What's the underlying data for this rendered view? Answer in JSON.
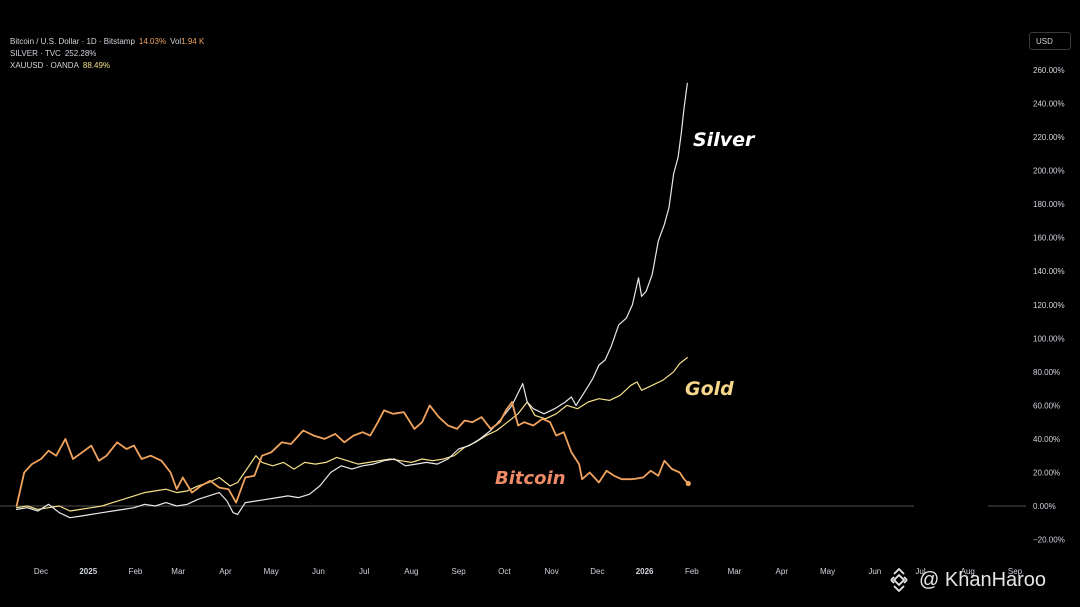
{
  "legend": [
    {
      "name": "Bitcoin / U.S. Dollar · 1D · Bitstamp",
      "value": "14.03%",
      "vol_label": "Vol",
      "vol_value": "1.94 K",
      "color": "#f0a35e"
    },
    {
      "name": "SILVER · TVC",
      "value": "252.28%",
      "color": "#ffffff"
    },
    {
      "name": "XAUUSD · OANDA",
      "value": "88.49%",
      "color": "#f5e08a"
    }
  ],
  "currency": "USD",
  "labels": {
    "silver": "Silver",
    "gold": "Gold",
    "bitcoin": "Bitcoin"
  },
  "watermark": {
    "handle": "@ KhanHaroo",
    "icon": "binance-logo-icon"
  },
  "colors": {
    "bitcoin": "#f0a35e",
    "silver": "#e8e8e8",
    "gold": "#f5e08a",
    "bitcoin_label": "#ee8a66",
    "gold_label": "#f5d68a"
  },
  "chart_data": {
    "type": "line",
    "y_unit": "%",
    "ylim": [
      -25,
      268
    ],
    "xlim": [
      "2024-11-15",
      "2026-09-20"
    ],
    "yticks": [
      "260.00%",
      "240.00%",
      "220.00%",
      "200.00%",
      "180.00%",
      "160.00%",
      "140.00%",
      "120.00%",
      "100.00%",
      "80.00%",
      "60.00%",
      "40.00%",
      "20.00%",
      "0.00%",
      "−20.00%"
    ],
    "ytick_values": [
      260,
      240,
      220,
      200,
      180,
      160,
      140,
      120,
      100,
      80,
      60,
      40,
      20,
      0,
      -20
    ],
    "xticks": [
      {
        "date": "2024-12-01",
        "label": "Dec"
      },
      {
        "date": "2025-01-01",
        "label": "2025",
        "bold": true
      },
      {
        "date": "2025-02-01",
        "label": "Feb"
      },
      {
        "date": "2025-03-01",
        "label": "Mar"
      },
      {
        "date": "2025-04-01",
        "label": "Apr"
      },
      {
        "date": "2025-05-01",
        "label": "May"
      },
      {
        "date": "2025-06-01",
        "label": "Jun"
      },
      {
        "date": "2025-07-01",
        "label": "Jul"
      },
      {
        "date": "2025-08-01",
        "label": "Aug"
      },
      {
        "date": "2025-09-01",
        "label": "Sep"
      },
      {
        "date": "2025-10-01",
        "label": "Oct"
      },
      {
        "date": "2025-11-01",
        "label": "Nov"
      },
      {
        "date": "2025-12-01",
        "label": "Dec"
      },
      {
        "date": "2026-01-01",
        "label": "2026",
        "bold": true
      },
      {
        "date": "2026-02-01",
        "label": "Feb"
      },
      {
        "date": "2026-03-01",
        "label": "Mar"
      },
      {
        "date": "2026-04-01",
        "label": "Apr"
      },
      {
        "date": "2026-05-01",
        "label": "May"
      },
      {
        "date": "2026-06-01",
        "label": "Jun"
      },
      {
        "date": "2026-07-01",
        "label": "Jul"
      },
      {
        "date": "2026-08-01",
        "label": "Aug"
      },
      {
        "date": "2026-09-01",
        "label": "Sep"
      }
    ],
    "series": [
      {
        "name": "Bitcoin",
        "key": "bitcoin",
        "points": [
          [
            "2024-11-15",
            0
          ],
          [
            "2024-11-20",
            20
          ],
          [
            "2024-11-25",
            25
          ],
          [
            "2024-12-01",
            28
          ],
          [
            "2024-12-06",
            33
          ],
          [
            "2024-12-11",
            30
          ],
          [
            "2024-12-17",
            40
          ],
          [
            "2024-12-22",
            28
          ],
          [
            "2024-12-28",
            32
          ],
          [
            "2025-01-03",
            36
          ],
          [
            "2025-01-08",
            27
          ],
          [
            "2025-01-13",
            30
          ],
          [
            "2025-01-20",
            38
          ],
          [
            "2025-01-26",
            34
          ],
          [
            "2025-01-31",
            36
          ],
          [
            "2025-02-05",
            28
          ],
          [
            "2025-02-11",
            30
          ],
          [
            "2025-02-18",
            27
          ],
          [
            "2025-02-24",
            20
          ],
          [
            "2025-02-28",
            10
          ],
          [
            "2025-03-04",
            17
          ],
          [
            "2025-03-10",
            8
          ],
          [
            "2025-03-16",
            12
          ],
          [
            "2025-03-22",
            15
          ],
          [
            "2025-03-28",
            11
          ],
          [
            "2025-04-03",
            10
          ],
          [
            "2025-04-08",
            2
          ],
          [
            "2025-04-14",
            17
          ],
          [
            "2025-04-20",
            18
          ],
          [
            "2025-04-25",
            30
          ],
          [
            "2025-05-01",
            32
          ],
          [
            "2025-05-08",
            38
          ],
          [
            "2025-05-14",
            37
          ],
          [
            "2025-05-22",
            45
          ],
          [
            "2025-05-29",
            42
          ],
          [
            "2025-06-05",
            40
          ],
          [
            "2025-06-12",
            43
          ],
          [
            "2025-06-18",
            38
          ],
          [
            "2025-06-24",
            42
          ],
          [
            "2025-06-30",
            44
          ],
          [
            "2025-07-05",
            42
          ],
          [
            "2025-07-10",
            50
          ],
          [
            "2025-07-14",
            57
          ],
          [
            "2025-07-20",
            55
          ],
          [
            "2025-07-27",
            56
          ],
          [
            "2025-08-03",
            46
          ],
          [
            "2025-08-08",
            50
          ],
          [
            "2025-08-13",
            60
          ],
          [
            "2025-08-19",
            53
          ],
          [
            "2025-08-25",
            48
          ],
          [
            "2025-08-31",
            46
          ],
          [
            "2025-09-05",
            51
          ],
          [
            "2025-09-10",
            50
          ],
          [
            "2025-09-16",
            53
          ],
          [
            "2025-09-22",
            46
          ],
          [
            "2025-09-28",
            50
          ],
          [
            "2025-10-02",
            57
          ],
          [
            "2025-10-06",
            62
          ],
          [
            "2025-10-10",
            48
          ],
          [
            "2025-10-14",
            50
          ],
          [
            "2025-10-20",
            48
          ],
          [
            "2025-10-26",
            52
          ],
          [
            "2025-10-31",
            50
          ],
          [
            "2025-11-04",
            42
          ],
          [
            "2025-11-09",
            44
          ],
          [
            "2025-11-14",
            32
          ],
          [
            "2025-11-19",
            25
          ],
          [
            "2025-11-21",
            16
          ],
          [
            "2025-11-26",
            20
          ],
          [
            "2025-12-02",
            14
          ],
          [
            "2025-12-07",
            21
          ],
          [
            "2025-12-12",
            18
          ],
          [
            "2025-12-17",
            16
          ],
          [
            "2025-12-24",
            16
          ],
          [
            "2025-12-31",
            17
          ],
          [
            "2026-01-05",
            21
          ],
          [
            "2026-01-10",
            18
          ],
          [
            "2026-01-14",
            27
          ],
          [
            "2026-01-19",
            22
          ],
          [
            "2026-01-24",
            20
          ],
          [
            "2026-01-27",
            16
          ],
          [
            "2026-01-29",
            14
          ]
        ]
      },
      {
        "name": "Silver",
        "key": "silver",
        "points": [
          [
            "2024-11-15",
            -2
          ],
          [
            "2024-11-22",
            -1
          ],
          [
            "2024-11-29",
            -3
          ],
          [
            "2024-12-06",
            1
          ],
          [
            "2024-12-13",
            -4
          ],
          [
            "2024-12-20",
            -7
          ],
          [
            "2024-12-27",
            -6
          ],
          [
            "2025-01-03",
            -5
          ],
          [
            "2025-01-10",
            -4
          ],
          [
            "2025-01-17",
            -3
          ],
          [
            "2025-01-24",
            -2
          ],
          [
            "2025-01-31",
            -1
          ],
          [
            "2025-02-07",
            1
          ],
          [
            "2025-02-14",
            0
          ],
          [
            "2025-02-21",
            2
          ],
          [
            "2025-02-28",
            0
          ],
          [
            "2025-03-07",
            1
          ],
          [
            "2025-03-14",
            4
          ],
          [
            "2025-03-21",
            6
          ],
          [
            "2025-03-28",
            8
          ],
          [
            "2025-04-02",
            3
          ],
          [
            "2025-04-06",
            -4
          ],
          [
            "2025-04-09",
            -5
          ],
          [
            "2025-04-14",
            2
          ],
          [
            "2025-04-21",
            3
          ],
          [
            "2025-04-28",
            4
          ],
          [
            "2025-05-05",
            5
          ],
          [
            "2025-05-12",
            6
          ],
          [
            "2025-05-19",
            5
          ],
          [
            "2025-05-26",
            7
          ],
          [
            "2025-06-02",
            12
          ],
          [
            "2025-06-09",
            20
          ],
          [
            "2025-06-16",
            24
          ],
          [
            "2025-06-23",
            22
          ],
          [
            "2025-06-30",
            24
          ],
          [
            "2025-07-07",
            25
          ],
          [
            "2025-07-14",
            27
          ],
          [
            "2025-07-21",
            28
          ],
          [
            "2025-07-28",
            24
          ],
          [
            "2025-08-04",
            25
          ],
          [
            "2025-08-11",
            26
          ],
          [
            "2025-08-18",
            25
          ],
          [
            "2025-08-25",
            28
          ],
          [
            "2025-09-01",
            34
          ],
          [
            "2025-09-08",
            36
          ],
          [
            "2025-09-15",
            40
          ],
          [
            "2025-09-22",
            45
          ],
          [
            "2025-09-29",
            52
          ],
          [
            "2025-10-06",
            60
          ],
          [
            "2025-10-13",
            73
          ],
          [
            "2025-10-16",
            62
          ],
          [
            "2025-10-20",
            58
          ],
          [
            "2025-10-27",
            55
          ],
          [
            "2025-11-03",
            58
          ],
          [
            "2025-11-10",
            62
          ],
          [
            "2025-11-14",
            65
          ],
          [
            "2025-11-17",
            60
          ],
          [
            "2025-11-24",
            70
          ],
          [
            "2025-11-28",
            76
          ],
          [
            "2025-12-02",
            84
          ],
          [
            "2025-12-06",
            87
          ],
          [
            "2025-12-10",
            95
          ],
          [
            "2025-12-15",
            108
          ],
          [
            "2025-12-20",
            112
          ],
          [
            "2025-12-24",
            120
          ],
          [
            "2025-12-28",
            136
          ],
          [
            "2025-12-30",
            125
          ],
          [
            "2026-01-02",
            128
          ],
          [
            "2026-01-06",
            138
          ],
          [
            "2026-01-10",
            158
          ],
          [
            "2026-01-14",
            168
          ],
          [
            "2026-01-17",
            178
          ],
          [
            "2026-01-20",
            198
          ],
          [
            "2026-01-23",
            208
          ],
          [
            "2026-01-25",
            222
          ],
          [
            "2026-01-27",
            238
          ],
          [
            "2026-01-29",
            252
          ]
        ]
      },
      {
        "name": "Gold",
        "key": "gold",
        "points": [
          [
            "2024-11-15",
            -1
          ],
          [
            "2024-11-22",
            0
          ],
          [
            "2024-11-29",
            -2
          ],
          [
            "2024-12-06",
            -1
          ],
          [
            "2024-12-13",
            0
          ],
          [
            "2024-12-20",
            -3
          ],
          [
            "2024-12-27",
            -2
          ],
          [
            "2025-01-03",
            -1
          ],
          [
            "2025-01-10",
            0
          ],
          [
            "2025-01-17",
            2
          ],
          [
            "2025-01-24",
            4
          ],
          [
            "2025-01-31",
            6
          ],
          [
            "2025-02-07",
            8
          ],
          [
            "2025-02-14",
            9
          ],
          [
            "2025-02-21",
            10
          ],
          [
            "2025-02-28",
            8
          ],
          [
            "2025-03-07",
            9
          ],
          [
            "2025-03-14",
            12
          ],
          [
            "2025-03-21",
            14
          ],
          [
            "2025-03-28",
            17
          ],
          [
            "2025-04-04",
            12
          ],
          [
            "2025-04-09",
            14
          ],
          [
            "2025-04-15",
            22
          ],
          [
            "2025-04-21",
            30
          ],
          [
            "2025-04-25",
            26
          ],
          [
            "2025-05-02",
            24
          ],
          [
            "2025-05-09",
            26
          ],
          [
            "2025-05-16",
            22
          ],
          [
            "2025-05-23",
            26
          ],
          [
            "2025-05-30",
            25
          ],
          [
            "2025-06-06",
            26
          ],
          [
            "2025-06-13",
            29
          ],
          [
            "2025-06-20",
            27
          ],
          [
            "2025-06-27",
            25
          ],
          [
            "2025-07-04",
            26
          ],
          [
            "2025-07-11",
            27
          ],
          [
            "2025-07-18",
            28
          ],
          [
            "2025-07-25",
            27
          ],
          [
            "2025-08-01",
            26
          ],
          [
            "2025-08-08",
            28
          ],
          [
            "2025-08-15",
            27
          ],
          [
            "2025-08-22",
            28
          ],
          [
            "2025-08-29",
            30
          ],
          [
            "2025-09-05",
            35
          ],
          [
            "2025-09-12",
            38
          ],
          [
            "2025-09-19",
            42
          ],
          [
            "2025-09-26",
            45
          ],
          [
            "2025-10-03",
            50
          ],
          [
            "2025-10-10",
            55
          ],
          [
            "2025-10-16",
            62
          ],
          [
            "2025-10-21",
            54
          ],
          [
            "2025-10-28",
            52
          ],
          [
            "2025-11-04",
            55
          ],
          [
            "2025-11-11",
            60
          ],
          [
            "2025-11-18",
            58
          ],
          [
            "2025-11-25",
            62
          ],
          [
            "2025-12-02",
            64
          ],
          [
            "2025-12-09",
            63
          ],
          [
            "2025-12-16",
            66
          ],
          [
            "2025-12-23",
            72
          ],
          [
            "2025-12-27",
            74
          ],
          [
            "2025-12-30",
            69
          ],
          [
            "2026-01-06",
            72
          ],
          [
            "2026-01-13",
            75
          ],
          [
            "2026-01-20",
            80
          ],
          [
            "2026-01-24",
            85
          ],
          [
            "2026-01-29",
            88.49
          ]
        ]
      }
    ]
  }
}
